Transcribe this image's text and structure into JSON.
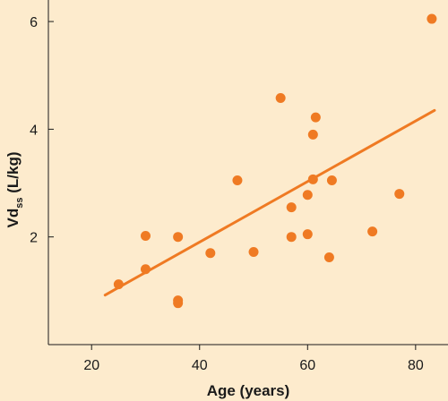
{
  "chart_data": {
    "type": "scatter",
    "title": "",
    "xlabel": "Age (years)",
    "ylabel_main": "Vd",
    "ylabel_sub": "ss",
    "ylabel_units": " (L/kg)",
    "xlim": [
      12,
      86
    ],
    "ylim": [
      0,
      6.4
    ],
    "xticks": [
      20,
      40,
      60,
      80
    ],
    "yticks": [
      2,
      4,
      6
    ],
    "grid": false,
    "legend": "none",
    "series": [
      {
        "points": [
          {
            "x": 25,
            "y": 1.12
          },
          {
            "x": 30,
            "y": 2.02
          },
          {
            "x": 30,
            "y": 1.4
          },
          {
            "x": 36,
            "y": 2.0
          },
          {
            "x": 36,
            "y": 0.82
          },
          {
            "x": 36,
            "y": 0.77
          },
          {
            "x": 42,
            "y": 1.7
          },
          {
            "x": 47,
            "y": 3.05
          },
          {
            "x": 50,
            "y": 1.72
          },
          {
            "x": 55,
            "y": 4.58
          },
          {
            "x": 57,
            "y": 2.55
          },
          {
            "x": 57,
            "y": 2.0
          },
          {
            "x": 60,
            "y": 2.78
          },
          {
            "x": 60,
            "y": 2.05
          },
          {
            "x": 61,
            "y": 3.07
          },
          {
            "x": 61,
            "y": 3.9
          },
          {
            "x": 61.5,
            "y": 4.22
          },
          {
            "x": 64,
            "y": 1.62
          },
          {
            "x": 64.5,
            "y": 3.05
          },
          {
            "x": 72,
            "y": 2.1
          },
          {
            "x": 77,
            "y": 2.8
          },
          {
            "x": 83,
            "y": 6.05
          }
        ]
      }
    ],
    "regression_line": [
      {
        "x": 22.5,
        "y": 0.92
      },
      {
        "x": 83.5,
        "y": 4.35
      }
    ],
    "colors": {
      "background": "#fdebcd",
      "marker": "#ef7a23",
      "line": "#ef7a23",
      "axis": "#1a1a1a"
    }
  }
}
